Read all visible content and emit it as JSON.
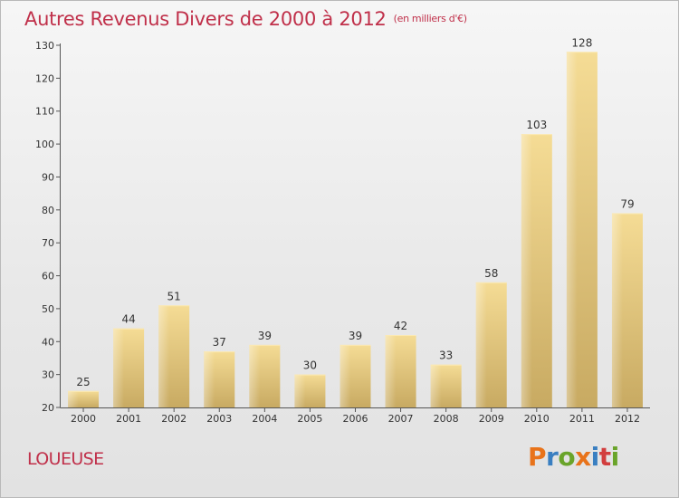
{
  "title": "Autres Revenus Divers de 2000 à 2012",
  "unit": "(en milliers d'€)",
  "commune": "LOUEUSE",
  "logo": {
    "letters": [
      "P",
      "r",
      "o",
      "x",
      "i",
      "t",
      "i"
    ],
    "colors": [
      "#e8731a",
      "#3a7fc1",
      "#6aa42a",
      "#e8731a",
      "#3a7fc1",
      "#d23e3e",
      "#6aa42a"
    ]
  },
  "colors": {
    "title": "#c0304a",
    "bar_top": "#f5dc95",
    "bar_bottom": "#c8aa62"
  },
  "chart_data": {
    "type": "bar",
    "title": "Autres Revenus Divers de 2000 à 2012",
    "unit": "(en milliers d'€)",
    "categories": [
      "2000",
      "2001",
      "2002",
      "2003",
      "2004",
      "2005",
      "2006",
      "2007",
      "2008",
      "2009",
      "2010",
      "2011",
      "2012"
    ],
    "values": [
      25,
      44,
      51,
      37,
      39,
      30,
      39,
      42,
      33,
      58,
      103,
      128,
      79
    ],
    "ylim": [
      20,
      130
    ],
    "yticks": [
      20,
      30,
      40,
      50,
      60,
      70,
      80,
      90,
      100,
      110,
      120,
      130
    ],
    "grid": false,
    "data_labels": true
  }
}
